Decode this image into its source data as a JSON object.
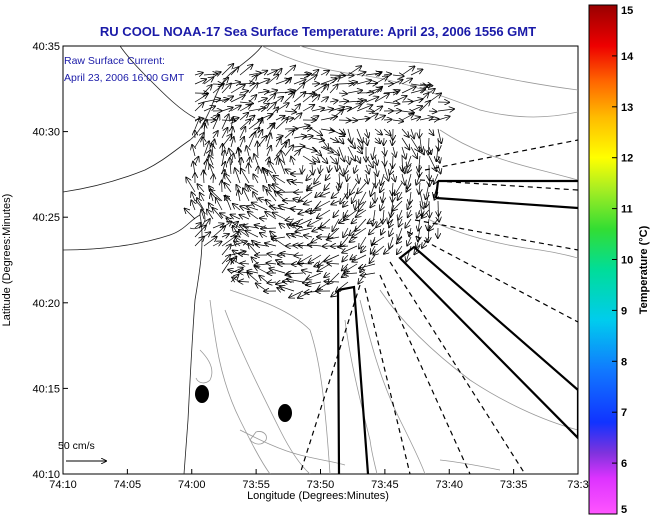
{
  "chart_data": {
    "type": "map",
    "title": "RU COOL  NOAA-17  Sea Surface Temperature:  April 23, 2006 1556 GMT",
    "annotation_line1": "Raw Surface Current:",
    "annotation_line2": "April 23, 2006 16:00 GMT",
    "xlabel": "Longitude (Degrees:Minutes)",
    "ylabel": "Latitude (Degrees:Minutes)",
    "x_tick_labels": [
      "74:10",
      "74:05",
      "74:00",
      "73:55",
      "73:50",
      "73:45",
      "73:40",
      "73:35",
      "73:3"
    ],
    "y_tick_labels": [
      "40:35",
      "40:30",
      "40:25",
      "40:20",
      "40:15",
      "40:10"
    ],
    "xlim_minutes_west": [
      70,
      30
    ],
    "ylim_minutes": [
      10,
      35
    ],
    "colorbar": {
      "label": "Temperature (°C)",
      "ticks": [
        "15",
        "14",
        "13",
        "12",
        "11",
        "10",
        "9",
        "8",
        "7",
        "6",
        "5"
      ],
      "range": [
        5,
        15
      ]
    },
    "scale_arrow_label": "50 cm/s"
  }
}
